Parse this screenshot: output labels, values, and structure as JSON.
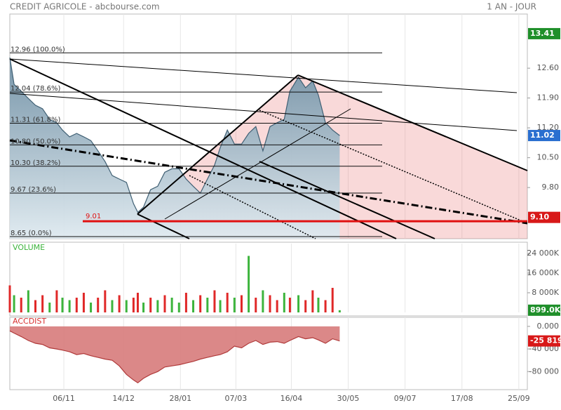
{
  "title": "CREDIT AGRICOLE - abcbourse.com",
  "period": "1 AN - JOUR",
  "chart_data": [
    {
      "type": "area",
      "x": [
        0,
        3,
        8,
        13,
        18,
        23,
        28,
        33,
        37,
        42,
        47,
        52,
        57,
        62,
        67,
        72,
        77,
        82,
        87,
        90,
        94,
        99,
        104,
        109,
        114,
        119,
        124,
        129,
        134,
        139,
        144,
        148,
        153,
        158,
        163,
        168,
        173,
        178,
        183,
        188,
        193,
        197,
        203,
        208,
        213,
        217,
        222,
        227,
        232
      ],
      "series": [
        {
          "color": "#3f5f73",
          "values": [
            12.85,
            12.22,
            12.06,
            11.89,
            11.73,
            11.65,
            11.4,
            11.32,
            11.15,
            10.99,
            11.07,
            10.99,
            10.9,
            10.66,
            10.41,
            10.08,
            10.0,
            9.92,
            9.42,
            9.22,
            9.34,
            9.75,
            9.83,
            10.16,
            10.24,
            10.24,
            10.0,
            9.83,
            9.67,
            10.0,
            10.33,
            10.74,
            11.15,
            10.82,
            10.82,
            11.07,
            11.23,
            10.66,
            11.23,
            11.32,
            11.4,
            12.06,
            12.39,
            12.14,
            12.3,
            11.97,
            11.32,
            11.15,
            11.02
          ]
        }
      ],
      "xlim": [
        0,
        364
      ],
      "ylim": [
        8.6,
        13.87
      ],
      "yticks": [
        {
          "value": 12.6,
          "label": "12.60"
        },
        {
          "value": 11.9,
          "label": "11.90"
        },
        {
          "value": 11.2,
          "label": "11.20"
        },
        {
          "value": 10.5,
          "label": "10.50"
        },
        {
          "value": 9.8,
          "label": "9.80"
        }
      ],
      "fib_levels": [
        {
          "value": 12.96,
          "label": "12.96  (100.0%)"
        },
        {
          "value": 12.04,
          "label": "12.04  (78.6%)"
        },
        {
          "value": 11.31,
          "label": "11.31  (61.8%)"
        },
        {
          "value": 10.8,
          "label": "10.80  (50.0%)"
        },
        {
          "value": 10.3,
          "label": "10.30  (38.2%)"
        },
        {
          "value": 9.67,
          "label": "9.67  (23.6%)"
        },
        {
          "value": 8.65,
          "label": "8.65  (0.0%)"
        }
      ],
      "support": {
        "value": 9.01,
        "label": "9.01",
        "color": "#e01010"
      },
      "markers": [
        {
          "value": 13.41,
          "label": "13.41",
          "color": "#1f8f2a"
        },
        {
          "value": 11.02,
          "label": "11.02",
          "color": "#2a6fd0"
        },
        {
          "value": 9.1,
          "label": "9.10",
          "color": "#d81818"
        }
      ]
    },
    {
      "type": "bar",
      "title": "VOLUME",
      "title_color": "#3cb43c",
      "x": [
        0,
        3,
        8,
        13,
        18,
        23,
        28,
        33,
        37,
        42,
        47,
        52,
        57,
        62,
        67,
        72,
        77,
        82,
        87,
        90,
        94,
        99,
        104,
        109,
        114,
        119,
        124,
        129,
        134,
        139,
        144,
        148,
        153,
        158,
        163,
        168,
        173,
        178,
        183,
        188,
        193,
        197,
        203,
        208,
        213,
        217,
        222,
        227,
        232
      ],
      "values": [
        11000,
        7000,
        6000,
        9000,
        5000,
        7000,
        4000,
        9000,
        6000,
        5000,
        6000,
        8000,
        4000,
        6000,
        9000,
        5000,
        7000,
        5000,
        6000,
        8000,
        4000,
        6000,
        5000,
        7000,
        6000,
        4000,
        8000,
        5000,
        7000,
        6000,
        9000,
        5000,
        8000,
        6000,
        7000,
        23000,
        6000,
        9000,
        7000,
        5000,
        8000,
        6000,
        7000,
        5000,
        9000,
        6000,
        5000,
        10000,
        899
      ],
      "colors": [
        "#e02828",
        "#3cb43c",
        "#e02828",
        "#3cb43c",
        "#e02828",
        "#e02828",
        "#3cb43c",
        "#e02828",
        "#3cb43c",
        "#3cb43c",
        "#e02828",
        "#e02828",
        "#3cb43c",
        "#e02828",
        "#e02828",
        "#3cb43c",
        "#e02828",
        "#3cb43c",
        "#e02828",
        "#e02828",
        "#3cb43c",
        "#e02828",
        "#3cb43c",
        "#e02828",
        "#3cb43c",
        "#3cb43c",
        "#e02828",
        "#3cb43c",
        "#e02828",
        "#3cb43c",
        "#e02828",
        "#3cb43c",
        "#e02828",
        "#3cb43c",
        "#e02828",
        "#3cb43c",
        "#e02828",
        "#3cb43c",
        "#e02828",
        "#e02828",
        "#3cb43c",
        "#e02828",
        "#3cb43c",
        "#e02828",
        "#e02828",
        "#3cb43c",
        "#e02828",
        "#e02828",
        "#3cb43c"
      ],
      "xlim": [
        0,
        364
      ],
      "ylim": [
        0,
        28000
      ],
      "yticks": [
        {
          "value": 24000,
          "label": "24 000K"
        },
        {
          "value": 16000,
          "label": "16 000K"
        },
        {
          "value": 8000,
          "label": "8 000K"
        }
      ],
      "markers": [
        {
          "value": 899,
          "label": "899.0K",
          "color": "#1f8f2a"
        }
      ]
    },
    {
      "type": "area",
      "title": "ACCDIST",
      "title_color": "#d83030",
      "x": [
        0,
        3,
        8,
        13,
        18,
        23,
        28,
        33,
        37,
        42,
        47,
        52,
        57,
        62,
        67,
        72,
        77,
        82,
        87,
        90,
        94,
        99,
        104,
        109,
        114,
        119,
        124,
        129,
        134,
        139,
        144,
        148,
        153,
        158,
        163,
        168,
        173,
        178,
        183,
        188,
        193,
        197,
        203,
        208,
        213,
        217,
        222,
        227,
        232
      ],
      "series": [
        {
          "color": "#b03a3a",
          "values": [
            -8000,
            -12000,
            -18000,
            -25000,
            -30000,
            -32000,
            -38000,
            -40000,
            -42000,
            -45000,
            -50000,
            -48000,
            -52000,
            -55000,
            -58000,
            -60000,
            -70000,
            -85000,
            -95000,
            -100000,
            -92000,
            -85000,
            -80000,
            -72000,
            -70000,
            -68000,
            -65000,
            -62000,
            -58000,
            -55000,
            -52000,
            -50000,
            -45000,
            -35000,
            -38000,
            -30000,
            -25000,
            -32000,
            -28000,
            -27000,
            -30000,
            -25000,
            -18000,
            -22000,
            -20000,
            -24000,
            -30000,
            -22000,
            -25819
          ]
        }
      ],
      "xlim": [
        0,
        364
      ],
      "ylim": [
        -112000,
        16000
      ],
      "yticks": [
        {
          "value": 0,
          "label": "0.000"
        },
        {
          "value": -40000,
          "label": "-40 000"
        },
        {
          "value": -80000,
          "label": "-80 000"
        }
      ],
      "xticks": [
        {
          "value": 38,
          "label": "06/11"
        },
        {
          "value": 80,
          "label": "14/12"
        },
        {
          "value": 120,
          "label": "28/01"
        },
        {
          "value": 159,
          "label": "07/03"
        },
        {
          "value": 198,
          "label": "16/04"
        },
        {
          "value": 238,
          "label": "30/05"
        },
        {
          "value": 278,
          "label": "09/07"
        },
        {
          "value": 318,
          "label": "17/08"
        },
        {
          "value": 358,
          "label": "25/09"
        }
      ],
      "markers": [
        {
          "value": -25819,
          "label": "-25 819",
          "color": "#d81818"
        }
      ]
    }
  ]
}
